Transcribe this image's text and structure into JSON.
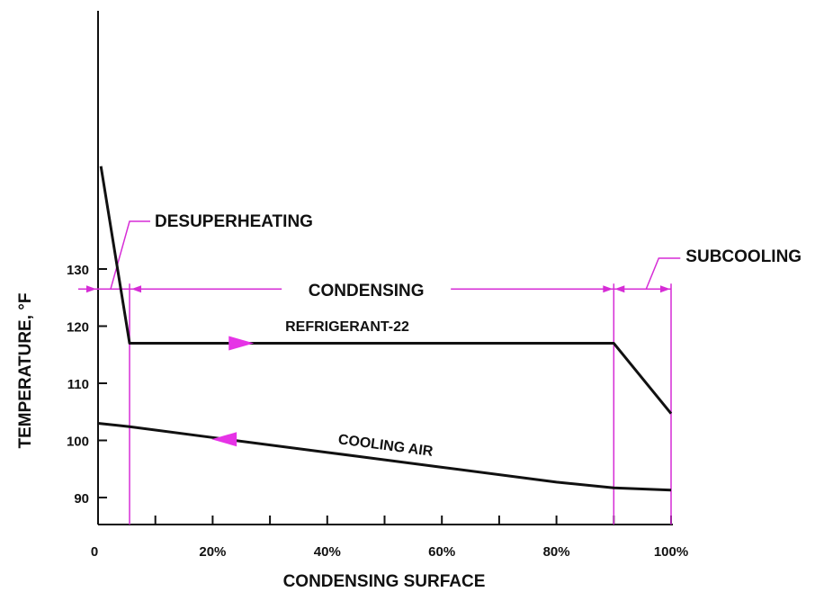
{
  "chart_data": {
    "type": "line",
    "title": "",
    "xlabel": "CONDENSING SURFACE",
    "ylabel": "TEMPERATURE, °F",
    "xlim": [
      0,
      100
    ],
    "ylim": [
      85,
      150
    ],
    "x_ticks": [
      0,
      10,
      20,
      30,
      40,
      50,
      60,
      70,
      80,
      90,
      100
    ],
    "x_tick_labels": [
      {
        "value": 0,
        "label": "0"
      },
      {
        "value": 20,
        "label": "20%"
      },
      {
        "value": 40,
        "label": "40%"
      },
      {
        "value": 60,
        "label": "60%"
      },
      {
        "value": 80,
        "label": "80%"
      },
      {
        "value": 100,
        "label": "100%"
      }
    ],
    "y_ticks": [
      {
        "value": 90,
        "label": "90"
      },
      {
        "value": 100,
        "label": "100"
      },
      {
        "value": 110,
        "label": "110"
      },
      {
        "value": 120,
        "label": "120"
      },
      {
        "value": 130,
        "label": "130"
      }
    ],
    "grid": false,
    "series": [
      {
        "name": "REFRIGERANT-22",
        "x": [
          0.5,
          5.5,
          90,
          100
        ],
        "y": [
          148,
          117,
          117,
          104.7
        ],
        "arrow": {
          "x": 25,
          "y": 117,
          "direction": "right"
        }
      },
      {
        "name": "COOLING AIR",
        "x": [
          0,
          5.5,
          20,
          40,
          60,
          80,
          90,
          100
        ],
        "y": [
          103,
          102.4,
          100.5,
          97.9,
          95.3,
          92.7,
          91.7,
          91.3
        ],
        "arrow": {
          "x": 22,
          "y": 100.2,
          "direction": "left"
        }
      }
    ],
    "regions": [
      {
        "label": "DESUPERHEATING",
        "x_start": 0,
        "x_end": 5.5
      },
      {
        "label": "CONDENSING",
        "x_start": 5.5,
        "x_end": 90
      },
      {
        "label": "SUBCOOLING",
        "x_start": 90,
        "x_end": 100
      }
    ],
    "region_line_y": 126.5,
    "colors": {
      "curve": "#111111",
      "annotation": "#d62cd6",
      "arrow": "#e633e6"
    }
  }
}
